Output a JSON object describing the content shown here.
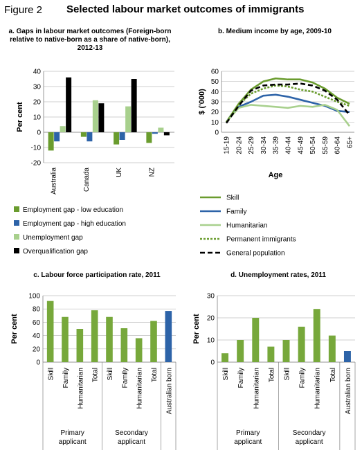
{
  "figure": {
    "label": "Figure 2",
    "title": "Selected labour market outcomes of immigrants"
  },
  "colors": {
    "employment_low": "#6a9c2e",
    "employment_high": "#2d63a8",
    "unemployment": "#a8d08d",
    "overqualification": "#000000",
    "skill": "#6a9c2e",
    "family": "#2d63a8",
    "humanitarian": "#a8d08d",
    "permanent": "#6a9c2e",
    "general": "#000000",
    "bar_green": "#77a83b",
    "bar_blue": "#2d63a8",
    "grid": "#bfbfbf",
    "axis": "#808080"
  },
  "chart_data": [
    {
      "id": "a",
      "type": "bar",
      "title_lines": [
        "a. Gaps in labour market outcomes (Foreign-born",
        "relative to native-born as a share of native-born),",
        "2012-13"
      ],
      "ylabel": "Per cent",
      "ylim": [
        -20,
        40
      ],
      "yticks": [
        -20,
        -10,
        0,
        10,
        20,
        30,
        40
      ],
      "categories": [
        "Australia",
        "Canada",
        "UK",
        "NZ"
      ],
      "series": [
        {
          "name": "Employment gap - low education",
          "color_key": "employment_low",
          "values": [
            -12,
            -3,
            -8,
            -7
          ]
        },
        {
          "name": "Employment gap - high education",
          "color_key": "employment_high",
          "values": [
            -6,
            -6,
            -5,
            -1
          ]
        },
        {
          "name": "Unemployment gap",
          "color_key": "unemployment",
          "values": [
            4,
            21,
            17,
            3
          ]
        },
        {
          "name": "Overqualification gap",
          "color_key": "overqualification",
          "values": [
            36,
            19,
            35,
            -2
          ]
        }
      ],
      "legend": "bottom"
    },
    {
      "id": "b",
      "type": "line",
      "title": "b. Medium income by age, 2009-10",
      "ylabel": "$ ('000)",
      "xlabel": "Age",
      "ylim": [
        0,
        60
      ],
      "yticks": [
        0,
        10,
        20,
        30,
        40,
        50,
        60
      ],
      "x": [
        "15-19",
        "20-24",
        "25-29",
        "30-34",
        "35-39",
        "40-44",
        "45-49",
        "50-54",
        "55-59",
        "60-64",
        "65+"
      ],
      "series": [
        {
          "name": "Skill",
          "color_key": "skill",
          "dash": "solid",
          "values": [
            10,
            28,
            42,
            50,
            53,
            52,
            52,
            49,
            43,
            34,
            28
          ]
        },
        {
          "name": "Family",
          "color_key": "family",
          "dash": "solid",
          "values": [
            10,
            25,
            30,
            36,
            37,
            35,
            32,
            29,
            26,
            21,
            20
          ]
        },
        {
          "name": "Humanitarian",
          "color_key": "humanitarian",
          "dash": "solid",
          "values": [
            10,
            24,
            27,
            26,
            25,
            24,
            26,
            25,
            27,
            22,
            6
          ]
        },
        {
          "name": "Permanent immigrants",
          "color_key": "permanent",
          "dash": "dotted",
          "values": [
            10,
            27,
            38,
            43,
            46,
            45,
            42,
            40,
            35,
            30,
            26
          ]
        },
        {
          "name": "General population",
          "color_key": "general",
          "dash": "dashed",
          "values": [
            9,
            26,
            41,
            46,
            47,
            47,
            48,
            46,
            41,
            32,
            17
          ]
        }
      ],
      "legend": "bottom"
    },
    {
      "id": "c",
      "type": "bar",
      "title": "c. Labour force participation rate, 2011",
      "ylabel": "Per cent",
      "ylim": [
        0,
        100
      ],
      "yticks": [
        0,
        20,
        40,
        60,
        80,
        100
      ],
      "categories": [
        "Skill",
        "Family",
        "Humanitarian",
        "Total",
        "Skill",
        "Family",
        "Humanitarian",
        "Total",
        "Australian born"
      ],
      "values": [
        92,
        68,
        50,
        78,
        68,
        51,
        36,
        62,
        77
      ],
      "bar_colors": [
        "bar_green",
        "bar_green",
        "bar_green",
        "bar_green",
        "bar_green",
        "bar_green",
        "bar_green",
        "bar_green",
        "bar_blue"
      ],
      "groups": [
        {
          "label_lines": [
            "Primary",
            "applicant"
          ],
          "span": 4
        },
        {
          "label_lines": [
            "Secondary",
            "applicant"
          ],
          "span": 4
        },
        {
          "label_lines": [
            ""
          ],
          "span": 1
        }
      ]
    },
    {
      "id": "d",
      "type": "bar",
      "title": "d. Unemployment rates, 2011",
      "ylabel": "Per cent",
      "ylim": [
        0,
        30
      ],
      "yticks": [
        0,
        10,
        20,
        30
      ],
      "categories": [
        "Skill",
        "Family",
        "Humanitarian",
        "Total",
        "Skill",
        "Family",
        "Humanitarian",
        "Total",
        "Australian born"
      ],
      "values": [
        4,
        10,
        20,
        7,
        10,
        16,
        24,
        12,
        5
      ],
      "bar_colors": [
        "bar_green",
        "bar_green",
        "bar_green",
        "bar_green",
        "bar_green",
        "bar_green",
        "bar_green",
        "bar_green",
        "bar_blue"
      ],
      "groups": [
        {
          "label_lines": [
            "Primary",
            "applicant"
          ],
          "span": 4
        },
        {
          "label_lines": [
            "Secondary",
            "applicant"
          ],
          "span": 4
        },
        {
          "label_lines": [
            ""
          ],
          "span": 1
        }
      ]
    }
  ]
}
